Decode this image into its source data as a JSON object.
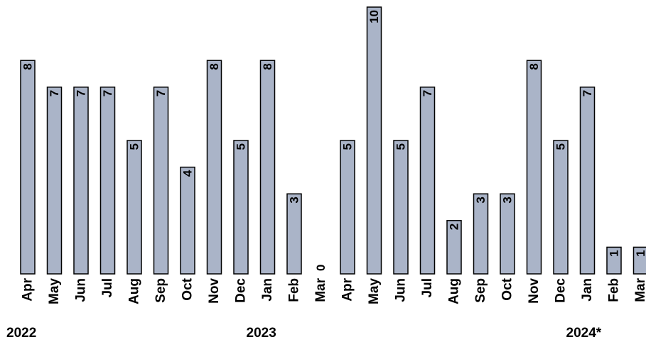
{
  "chart_data": {
    "type": "bar",
    "categories": [
      "Apr",
      "May",
      "Jun",
      "Jul",
      "Aug",
      "Sep",
      "Oct",
      "Nov",
      "Dec",
      "Jan",
      "Feb",
      "Mar",
      "Apr",
      "May",
      "Jun",
      "Jul",
      "Aug",
      "Sep",
      "Oct",
      "Nov",
      "Dec",
      "Jan",
      "Feb",
      "Mar"
    ],
    "values": [
      8,
      7,
      7,
      7,
      5,
      7,
      4,
      8,
      5,
      8,
      3,
      0,
      5,
      10,
      5,
      7,
      2,
      3,
      3,
      8,
      5,
      7,
      1,
      1
    ],
    "year_labels": [
      {
        "text": "2022",
        "category_index": 0
      },
      {
        "text": "2023",
        "category_index": 9
      },
      {
        "text": "2024*",
        "category_index": 21
      }
    ],
    "ylim": [
      0,
      10
    ],
    "grid": false,
    "bar_color": "#aab4c8",
    "title": "",
    "xlabel": "",
    "ylabel": ""
  }
}
